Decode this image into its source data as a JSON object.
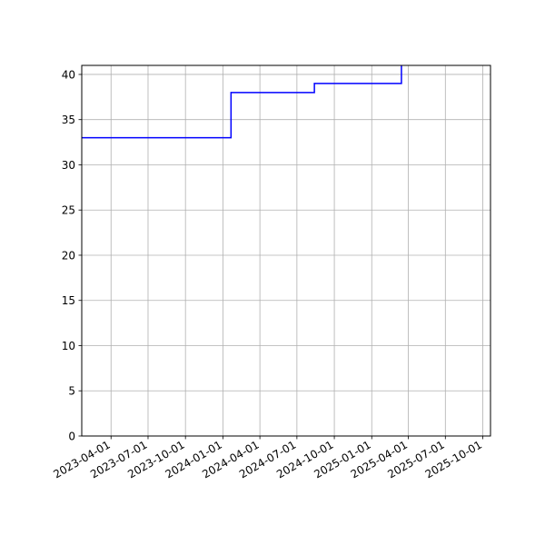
{
  "chart_data": {
    "type": "line",
    "line_style": "step",
    "title": "",
    "xlabel": "",
    "ylabel": "",
    "x_axis_type": "date",
    "xlim": [
      "2023-01-19",
      "2025-10-20"
    ],
    "ylim": [
      0,
      41
    ],
    "grid": true,
    "x_ticks": [
      "2023-04-01",
      "2023-07-01",
      "2023-10-01",
      "2024-01-01",
      "2024-04-01",
      "2024-07-01",
      "2024-10-01",
      "2025-01-01",
      "2025-04-01",
      "2025-07-01",
      "2025-10-01"
    ],
    "y_ticks": [
      0,
      5,
      10,
      15,
      20,
      25,
      30,
      35,
      40
    ],
    "series": [
      {
        "color": "#0000ff",
        "points": [
          {
            "x": "2023-01-19",
            "y": 33
          },
          {
            "x": "2024-01-21",
            "y": 38
          },
          {
            "x": "2024-08-13",
            "y": 39
          },
          {
            "x": "2025-03-15",
            "y": 42
          }
        ]
      }
    ]
  }
}
